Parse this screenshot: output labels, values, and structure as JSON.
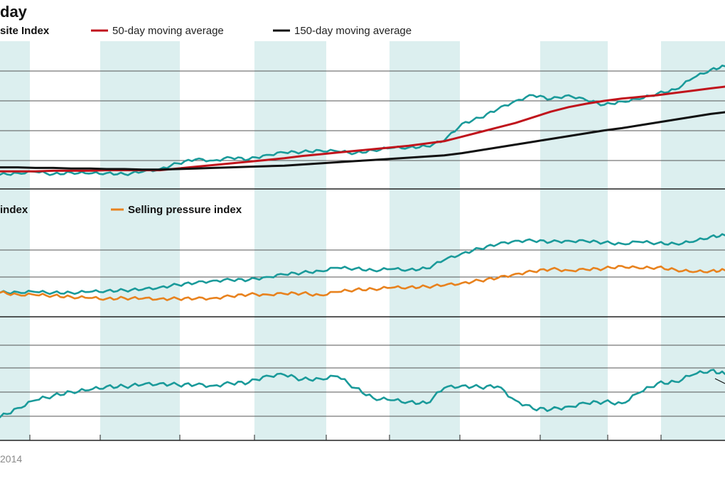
{
  "chart_data": [
    {
      "type": "line",
      "title": "day",
      "legend": [
        {
          "name": "site Index",
          "color": "#1a9a9a",
          "marker": "none"
        },
        {
          "name": "50-day moving average",
          "color": "#c0141c"
        },
        {
          "name": "150-day moving average",
          "color": "#111111"
        }
      ],
      "x": [
        0,
        25,
        50,
        75,
        100,
        125,
        150,
        175,
        200,
        225,
        250,
        275,
        300,
        325,
        350,
        375,
        400,
        425,
        450,
        475,
        500,
        525,
        550,
        575,
        600,
        625,
        650,
        675,
        700,
        725,
        750,
        775,
        800,
        825,
        850,
        875,
        900,
        925,
        950,
        975,
        1000,
        1020
      ],
      "series": [
        {
          "name": "site Index",
          "color": "#1a9a9a",
          "values": [
            0.5,
            0.8,
            1.0,
            0.6,
            0.9,
            0.7,
            0.8,
            0.6,
            1.0,
            1.5,
            2.5,
            3.2,
            3.0,
            3.5,
            3.2,
            4.0,
            4.4,
            4.5,
            4.8,
            4.6,
            4.3,
            4.8,
            5.2,
            5.3,
            5.5,
            6.5,
            9.5,
            10.5,
            12.0,
            13.5,
            14.5,
            13.8,
            14.5,
            13.6,
            12.8,
            13.4,
            13.8,
            14.8,
            15.5,
            17.5,
            19.0,
            19.6
          ]
        },
        {
          "name": "50-day moving average",
          "color": "#c0141c",
          "values": [
            1.1,
            1.1,
            1.1,
            1.2,
            1.2,
            1.2,
            1.3,
            1.3,
            1.3,
            1.3,
            1.6,
            1.9,
            2.2,
            2.5,
            2.8,
            3.1,
            3.4,
            3.8,
            4.1,
            4.4,
            4.7,
            5.0,
            5.3,
            5.6,
            6.0,
            6.4,
            7.2,
            8.0,
            8.8,
            9.6,
            10.6,
            11.6,
            12.4,
            13.0,
            13.5,
            13.9,
            14.2,
            14.5,
            14.9,
            15.3,
            15.7,
            16.0
          ]
        },
        {
          "name": "150-day moving average",
          "color": "#111111",
          "values": [
            1.8,
            1.8,
            1.7,
            1.7,
            1.6,
            1.6,
            1.5,
            1.5,
            1.4,
            1.4,
            1.5,
            1.6,
            1.7,
            1.8,
            1.9,
            2.0,
            2.1,
            2.3,
            2.5,
            2.7,
            2.9,
            3.1,
            3.3,
            3.5,
            3.7,
            3.9,
            4.3,
            4.8,
            5.3,
            5.8,
            6.3,
            6.8,
            7.3,
            7.8,
            8.3,
            8.7,
            9.2,
            9.7,
            10.2,
            10.7,
            11.2,
            11.5
          ]
        }
      ]
    },
    {
      "type": "line",
      "legend": [
        {
          "name": "index",
          "color": "#1a9a9a",
          "marker": "none"
        },
        {
          "name": "Selling pressure index",
          "color": "#e8821e"
        }
      ],
      "x": [
        0,
        25,
        50,
        75,
        100,
        125,
        150,
        175,
        200,
        225,
        250,
        275,
        300,
        325,
        350,
        375,
        400,
        425,
        450,
        475,
        500,
        525,
        550,
        575,
        600,
        625,
        650,
        675,
        700,
        725,
        750,
        775,
        800,
        825,
        850,
        875,
        900,
        925,
        950,
        975,
        1000,
        1020
      ],
      "series": [
        {
          "name": "index",
          "color": "#1a9a9a",
          "values": [
            3.0,
            3.1,
            3.1,
            3.0,
            3.0,
            3.1,
            3.3,
            3.4,
            3.5,
            3.9,
            4.3,
            4.6,
            5.0,
            5.1,
            5.1,
            5.6,
            6.0,
            6.3,
            6.6,
            7.1,
            7.0,
            6.7,
            6.9,
            6.8,
            7.0,
            8.4,
            9.5,
            10.3,
            11.0,
            11.6,
            11.6,
            11.4,
            11.6,
            11.5,
            11.3,
            11.1,
            11.4,
            11.2,
            11.1,
            11.4,
            12.3,
            12.5
          ]
        },
        {
          "name": "Selling pressure index",
          "color": "#e8821e",
          "values": [
            3.0,
            2.7,
            2.6,
            2.5,
            2.3,
            2.1,
            2.0,
            2.1,
            2.0,
            2.0,
            2.0,
            2.0,
            2.1,
            2.4,
            2.7,
            2.7,
            2.8,
            2.9,
            2.6,
            3.1,
            3.5,
            3.6,
            3.8,
            3.9,
            4.0,
            4.2,
            4.6,
            5.0,
            5.4,
            6.1,
            6.5,
            6.9,
            6.7,
            6.8,
            7.0,
            7.4,
            7.0,
            7.2,
            6.8,
            6.4,
            6.6,
            6.7
          ]
        }
      ]
    },
    {
      "type": "line",
      "x": [
        0,
        25,
        50,
        75,
        100,
        125,
        150,
        175,
        200,
        225,
        250,
        275,
        300,
        325,
        350,
        375,
        400,
        425,
        450,
        475,
        500,
        525,
        550,
        575,
        600,
        625,
        650,
        675,
        700,
        725,
        750,
        775,
        800,
        825,
        850,
        875,
        900,
        925,
        950,
        975,
        1000,
        1020
      ],
      "series": [
        {
          "name": "",
          "color": "#1a9a9a",
          "values": [
            1.0,
            2.2,
            3.2,
            3.8,
            4.3,
            4.5,
            5.0,
            5.0,
            5.2,
            5.4,
            5.2,
            5.2,
            5.1,
            5.4,
            5.5,
            6.4,
            6.5,
            5.9,
            6.0,
            6.3,
            4.8,
            3.5,
            3.2,
            3.0,
            2.8,
            4.8,
            5.1,
            4.9,
            5.0,
            3.2,
            2.1,
            2.0,
            2.4,
            2.8,
            3.0,
            2.8,
            4.2,
            5.4,
            5.6,
            6.5,
            7.1,
            6.6
          ]
        }
      ]
    }
  ],
  "footer": {
    "date_label": "2014"
  }
}
